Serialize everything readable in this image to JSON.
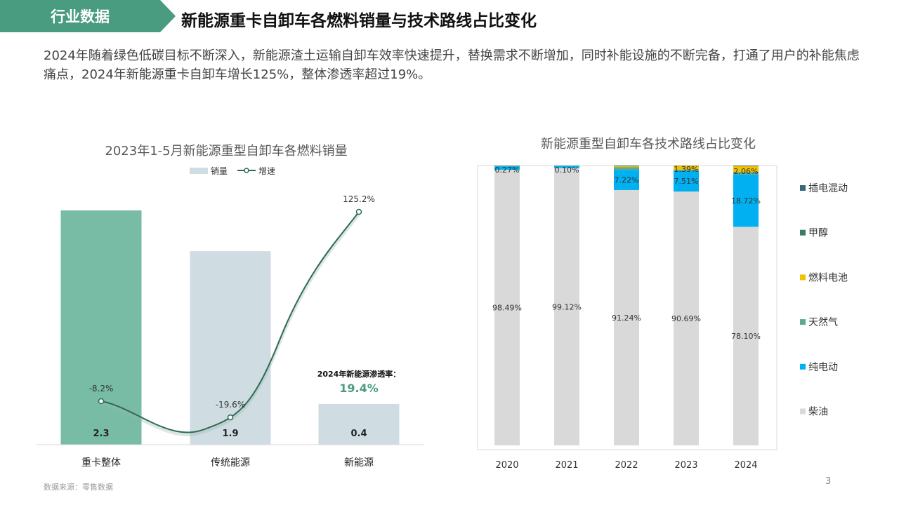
{
  "header": {
    "tag": "行业数据",
    "title": "新能源重卡自卸车各燃料销量与技术路线占比变化"
  },
  "description": "2024年随着绿色低碳目标不断深入，新能源渣土运输自卸车效率快速提升，替换需求不断增加，同时补能设施的不断完备，打通了用户的补能焦虑痛点，2024年新能源重卡自卸车增长125%，整体渗透率超过19%。",
  "footer": {
    "source": "数据来源：零售数据",
    "page_number": "3"
  },
  "colors": {
    "accent": "#4a9c80",
    "bar_first": "#78bca6",
    "bar_other": "#cfdde2",
    "line": "#2e6b53",
    "diesel": "#d9d9d9",
    "electric": "#00b0f0",
    "gas": "#5fa88c",
    "fuel_cell": "#f2c200",
    "methanol": "#3c7c62",
    "hybrid": "#3a6878"
  },
  "chart_data": [
    {
      "type": "bar",
      "title": "2023年1-5月新能源重型自卸车各燃料销量",
      "categories": [
        "重卡整体",
        "传统能源",
        "新能源"
      ],
      "series": [
        {
          "name": "销量",
          "type": "bar",
          "values": [
            2.3,
            1.9,
            0.4
          ],
          "labels": [
            "2.3",
            "1.9",
            "0.4"
          ]
        },
        {
          "name": "增速",
          "type": "line",
          "values": [
            -8.2,
            -19.6,
            125.2
          ],
          "labels": [
            "-8.2%",
            "-19.6%",
            "125.2%"
          ]
        }
      ],
      "annotation": {
        "label": "2024年新能源渗透率：",
        "value": "19.4%"
      },
      "legend": "top"
    },
    {
      "type": "bar",
      "stacked": true,
      "title": "新能源重型自卸车各技术路线占比变化",
      "categories": [
        "2020",
        "2021",
        "2022",
        "2023",
        "2024"
      ],
      "series": [
        {
          "name": "柴油",
          "values": [
            98.49,
            99.12,
            91.24,
            90.69,
            78.1
          ],
          "labels": [
            "98.49%",
            "99.12%",
            "91.24%",
            "90.69%",
            "78.10%"
          ]
        },
        {
          "name": "纯电动",
          "values": [
            1.24,
            0.78,
            7.22,
            7.51,
            18.72
          ],
          "labels": [
            "",
            "",
            "7.22%",
            "7.51%",
            "18.72%"
          ]
        },
        {
          "name": "天然气",
          "values": [
            0.27,
            0.1,
            1.0,
            0.3,
            0.9
          ],
          "labels": [
            "0.27%",
            "0.10%",
            "",
            "",
            ""
          ]
        },
        {
          "name": "燃料电池",
          "values": [
            0,
            0,
            0.3,
            1.39,
            2.06
          ],
          "labels": [
            "",
            "",
            "",
            "1.39%",
            "2.06%"
          ]
        },
        {
          "name": "甲醇",
          "values": [
            0,
            0,
            0.1,
            0.1,
            0.1
          ],
          "labels": [
            "",
            "",
            "",
            "",
            ""
          ]
        },
        {
          "name": "插电混动",
          "values": [
            0,
            0,
            0.14,
            0.01,
            0.12
          ],
          "labels": [
            "",
            "",
            "",
            "",
            ""
          ]
        }
      ],
      "legend_order": [
        "插电混动",
        "甲醇",
        "燃料电池",
        "天然气",
        "纯电动",
        "柴油"
      ],
      "legend": "right",
      "ylim": [
        0,
        100
      ]
    }
  ]
}
